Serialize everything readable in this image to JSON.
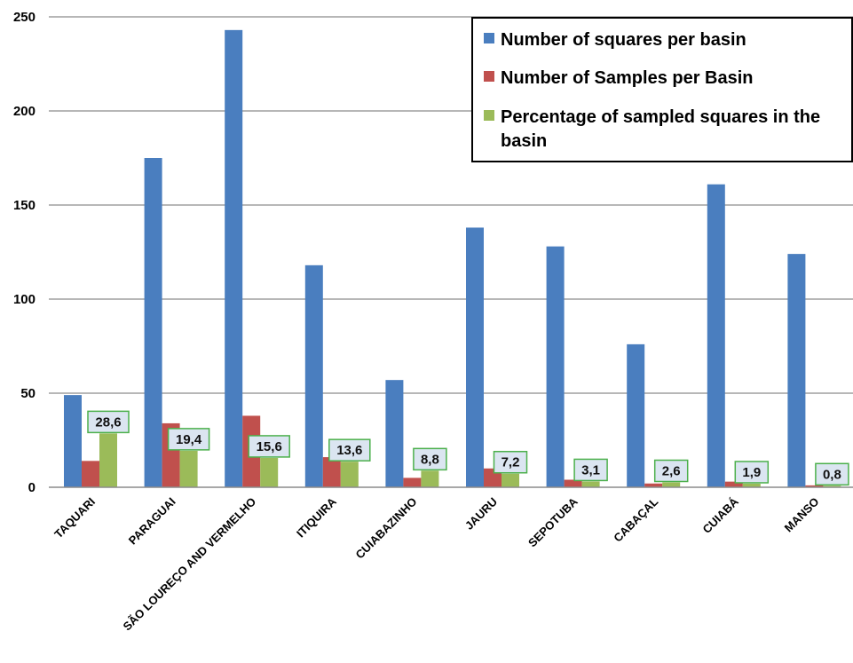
{
  "chart_data": {
    "type": "bar",
    "categories": [
      "TAQUARI",
      "PARAGUAI",
      "SÃO LOUREÇO AND VERMELHO",
      "ITIQUIRA",
      "CUIABAZINHO",
      "JAURU",
      "SEPOTUBA",
      "CABAÇAL",
      "CUIABÁ",
      "MANSO"
    ],
    "series": [
      {
        "name": "Number of squares per basin",
        "color": "#4a7ebf",
        "values": [
          49,
          175,
          243,
          118,
          57,
          138,
          128,
          76,
          161,
          124
        ]
      },
      {
        "name": "Number of Samples per Basin",
        "color": "#c0504d",
        "values": [
          14,
          34,
          38,
          16,
          5,
          10,
          4,
          2,
          3,
          1
        ]
      },
      {
        "name": "Percentage of sampled squares in the basin",
        "legend_lines": [
          "Percentage of sampled squares in the",
          "basin"
        ],
        "color": "#9bbb59",
        "values": [
          28.6,
          19.4,
          15.6,
          13.6,
          8.8,
          7.2,
          3.1,
          2.6,
          1.9,
          0.8
        ]
      }
    ],
    "data_labels": [
      "28,6",
      "19,4",
      "15,6",
      "13,6",
      "8,8",
      "7,2",
      "3,1",
      "2,6",
      "1,9",
      "0,8"
    ],
    "y_ticks": [
      "0",
      "50",
      "100",
      "150",
      "200",
      "250"
    ],
    "ylim": [
      0,
      250
    ],
    "grid": true,
    "legend_position": "top-right",
    "label_box_fill": "#dbe5f1",
    "label_box_border": "#4cb04c"
  }
}
